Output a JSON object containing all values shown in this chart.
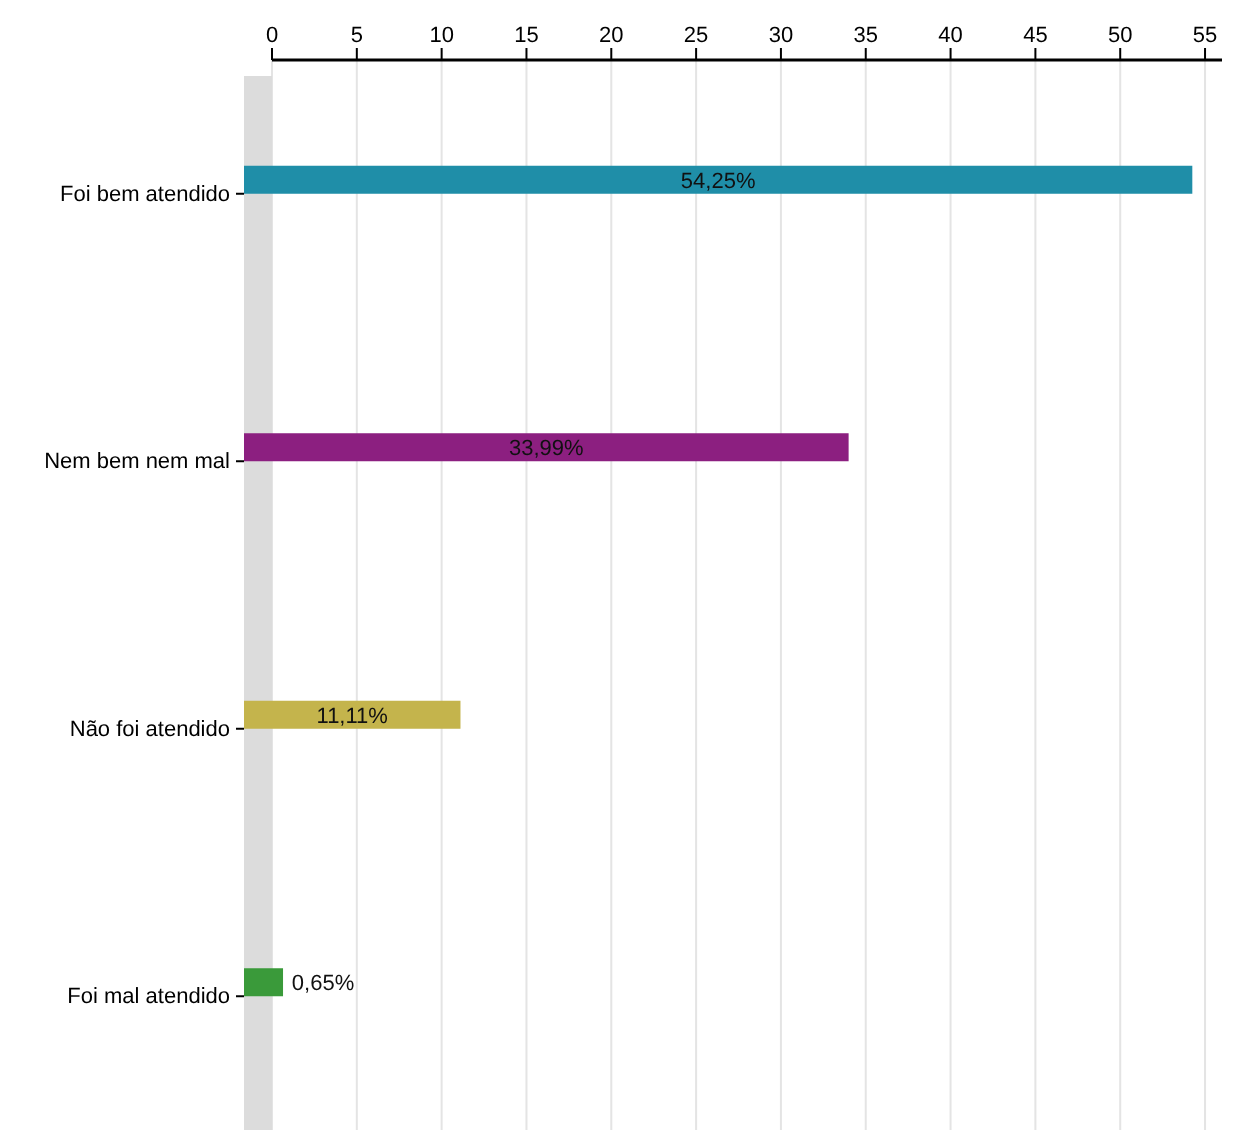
{
  "chart_data": {
    "type": "bar",
    "orientation": "horizontal",
    "categories": [
      "Foi bem atendido",
      "Nem bem nem mal",
      "Não foi atendido",
      "Foi mal atendido"
    ],
    "values": [
      54.25,
      33.99,
      11.11,
      0.65
    ],
    "colors": [
      "#1f8ea8",
      "#8c1f80",
      "#c4b44c",
      "#3a9a3a"
    ],
    "value_labels": [
      "54,25%",
      "33,99%",
      "11,11%",
      "0,65%"
    ],
    "xlim": [
      0,
      56
    ],
    "xticks": [
      0,
      5,
      10,
      15,
      20,
      25,
      30,
      35,
      40,
      45,
      50,
      55
    ],
    "grid": "x"
  }
}
